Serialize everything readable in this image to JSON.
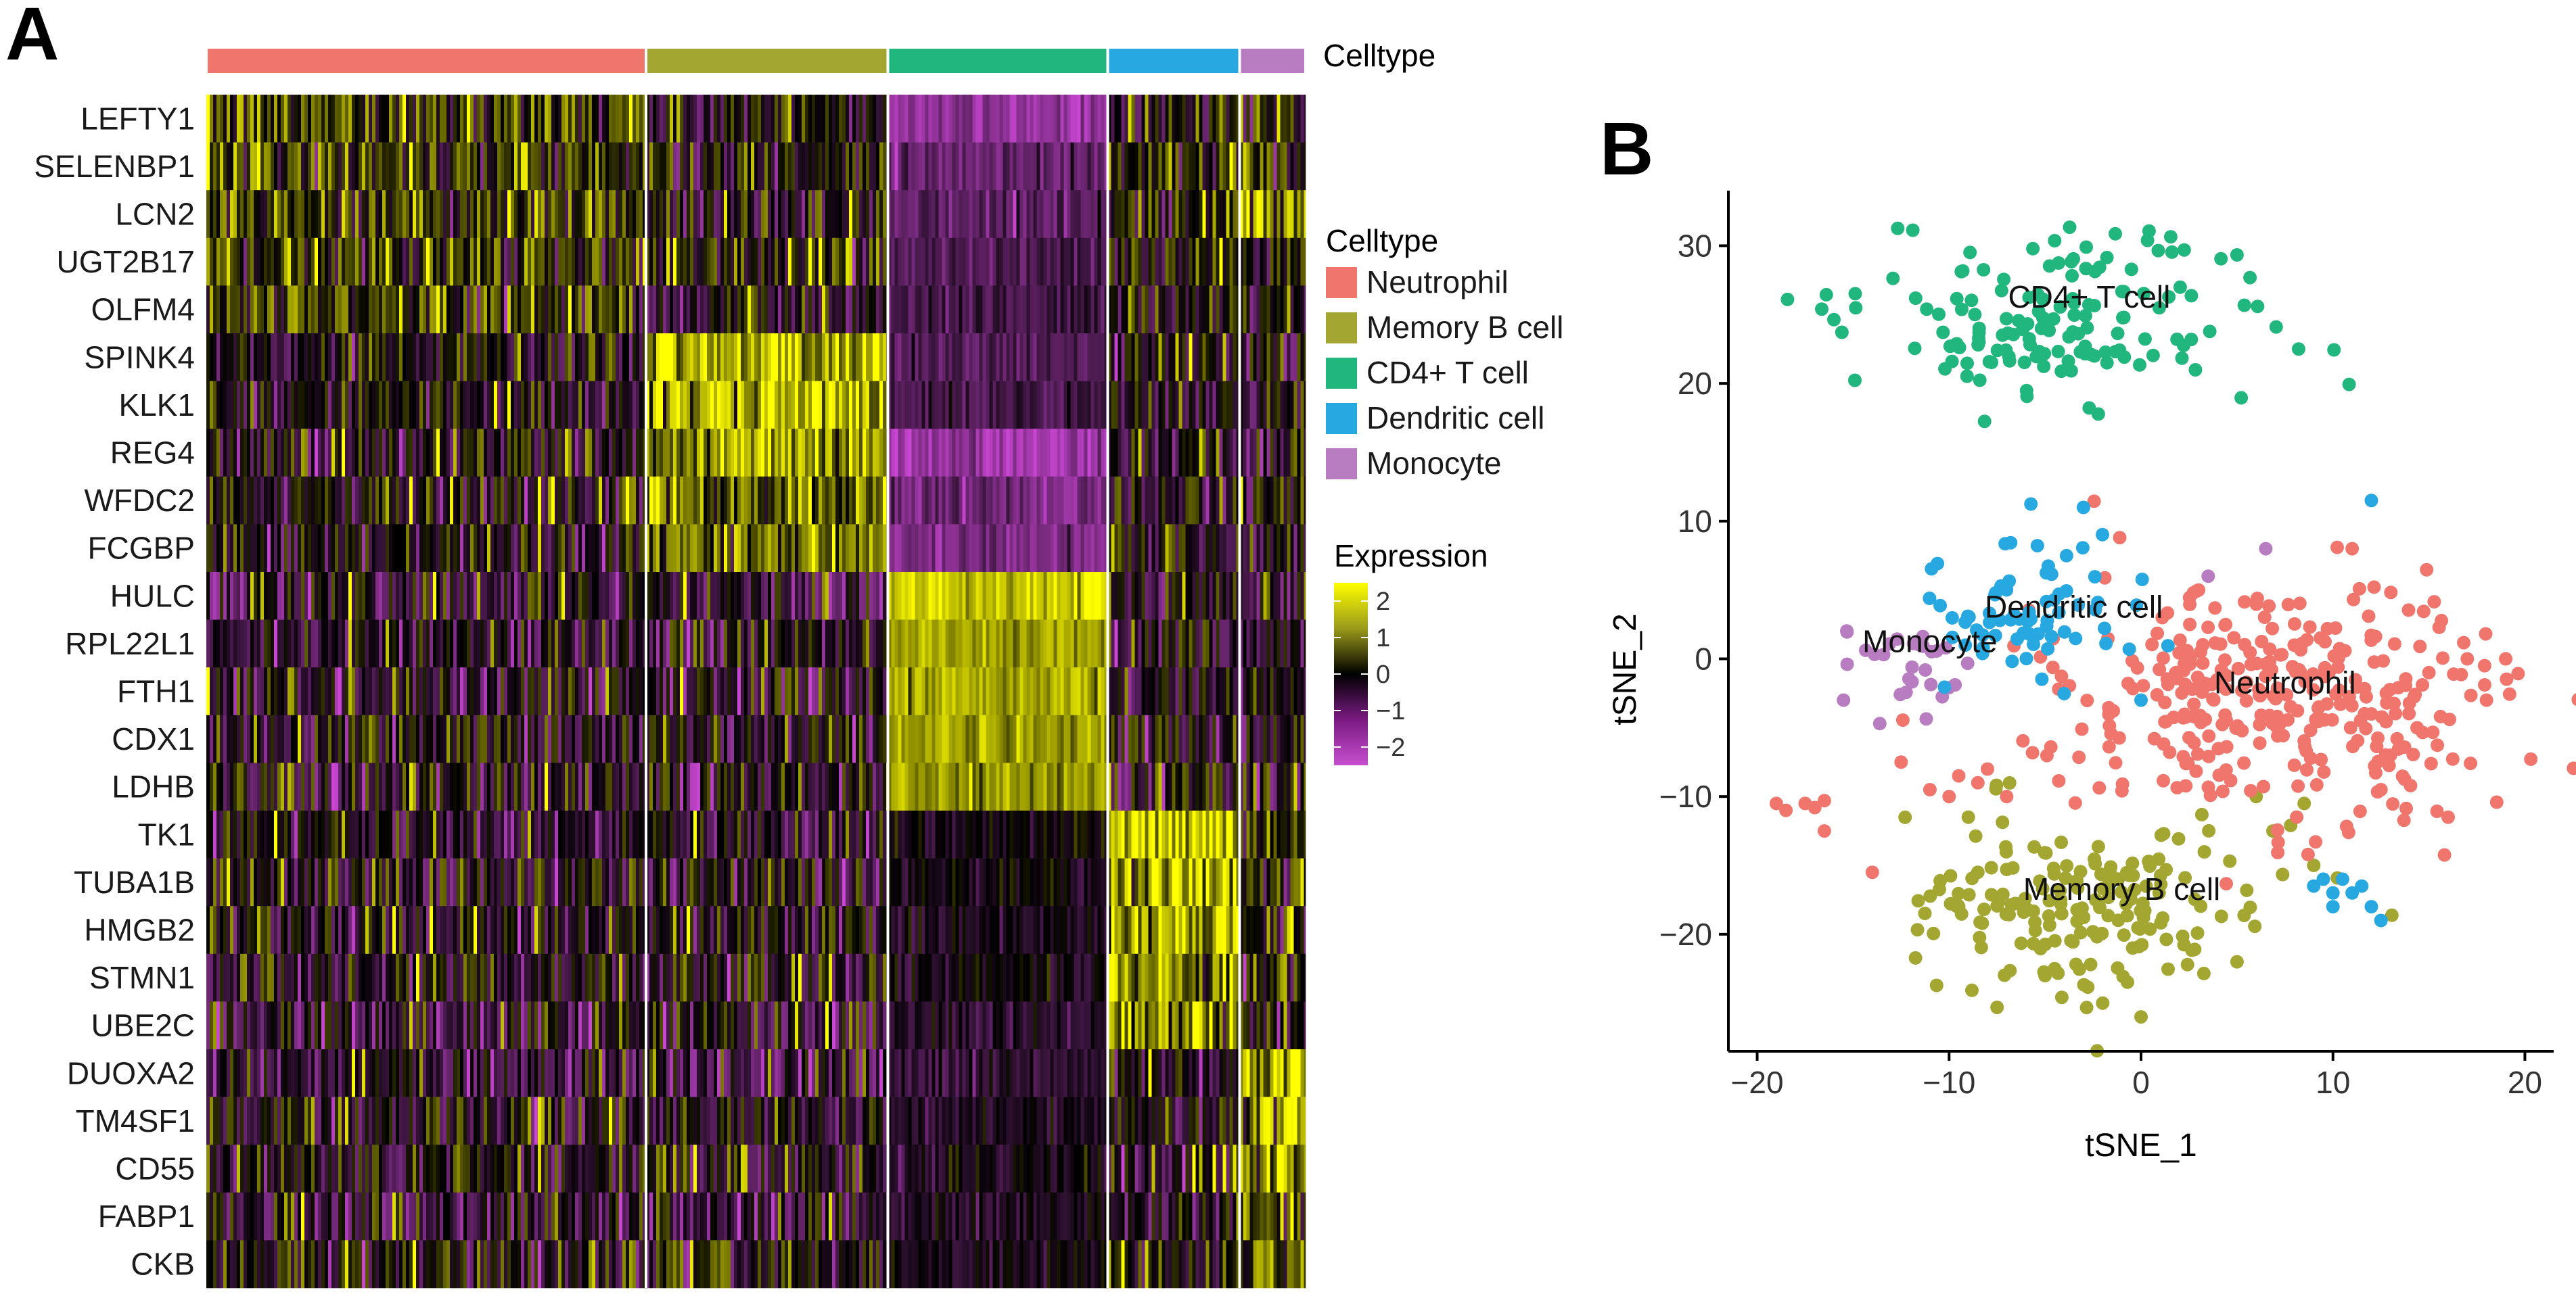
{
  "panels": {
    "a_label": "A",
    "b_label": "B"
  },
  "colors": {
    "Neutrophil": "#F0766D",
    "Memory B cell": "#A3A630",
    "CD4+ T cell": "#20B67D",
    "Dendritic cell": "#28A8E0",
    "Monocyte": "#B87CC1"
  },
  "chart_data": [
    {
      "type": "heatmap",
      "title": "",
      "annotation_label": "Celltype",
      "celltypes": [
        {
          "name": "Neutrophil",
          "fraction": 0.4
        },
        {
          "name": "Memory B cell",
          "fraction": 0.22
        },
        {
          "name": "CD4+ T cell",
          "fraction": 0.2
        },
        {
          "name": "Dendritic cell",
          "fraction": 0.12
        },
        {
          "name": "Monocyte",
          "fraction": 0.06
        }
      ],
      "genes": [
        "LEFTY1",
        "SELENBP1",
        "LCN2",
        "UGT2B17",
        "OLFM4",
        "SPINK4",
        "KLK1",
        "REG4",
        "WFDC2",
        "FCGBP",
        "HULC",
        "RPL22L1",
        "FTH1",
        "CDX1",
        "LDHB",
        "TK1",
        "TUBA1B",
        "HMGB2",
        "STMN1",
        "UBE2C",
        "DUOXA2",
        "TM4SF1",
        "CD55",
        "FABP1",
        "CKB"
      ],
      "mean_expression": [
        [
          0.6,
          -0.2,
          -1.8,
          0.0,
          0.2
        ],
        [
          0.5,
          -0.1,
          -1.2,
          0.2,
          0.0
        ],
        [
          0.5,
          -0.1,
          -1.1,
          0.0,
          1.0
        ],
        [
          0.5,
          0.0,
          -0.9,
          0.1,
          0.0
        ],
        [
          0.5,
          -0.3,
          -0.8,
          -0.1,
          0.0
        ],
        [
          -0.1,
          1.6,
          -1.0,
          -0.3,
          -0.2
        ],
        [
          -0.1,
          1.6,
          -0.9,
          -0.2,
          -0.2
        ],
        [
          -0.2,
          1.3,
          -2.0,
          -0.4,
          -0.2
        ],
        [
          -0.1,
          1.2,
          -1.4,
          -0.3,
          -0.1
        ],
        [
          -0.1,
          1.1,
          -1.6,
          -0.2,
          -0.2
        ],
        [
          -0.6,
          -0.6,
          2.0,
          -0.5,
          -0.5
        ],
        [
          -0.4,
          -0.4,
          1.6,
          -0.4,
          -0.3
        ],
        [
          -0.3,
          -0.3,
          1.6,
          -0.3,
          -0.2
        ],
        [
          -0.3,
          -0.3,
          1.5,
          -0.2,
          -0.2
        ],
        [
          -0.3,
          -0.3,
          1.5,
          -0.2,
          -0.2
        ],
        [
          -0.3,
          -0.4,
          -0.2,
          1.8,
          0.2
        ],
        [
          -0.2,
          -0.3,
          -0.2,
          1.6,
          0.2
        ],
        [
          -0.2,
          -0.3,
          -0.3,
          1.6,
          0.1
        ],
        [
          -0.2,
          -0.3,
          -0.2,
          1.5,
          0.1
        ],
        [
          -0.5,
          -0.5,
          -0.5,
          1.3,
          -0.3
        ],
        [
          -0.6,
          -0.6,
          -0.6,
          -0.4,
          1.8
        ],
        [
          -0.2,
          -0.3,
          -0.3,
          -0.2,
          1.6
        ],
        [
          -0.1,
          -0.2,
          -0.3,
          -0.1,
          1.3
        ],
        [
          -0.4,
          -0.4,
          -0.4,
          -0.3,
          0.8
        ],
        [
          -0.1,
          -0.2,
          -0.3,
          -0.1,
          0.8
        ]
      ],
      "legend": {
        "celltype_title": "Celltype",
        "expression_title": "Expression",
        "ticks": [
          2,
          1,
          0,
          -1,
          -2
        ],
        "tick_labels": [
          "2",
          "1",
          "0",
          "−1",
          "−2"
        ]
      }
    },
    {
      "type": "scatter",
      "title": "",
      "xlabel": "tSNE_1",
      "ylabel": "tSNE_2",
      "xlim": [
        -21.5,
        21.5
      ],
      "ylim": [
        -28.5,
        34
      ],
      "xticks": [
        -20,
        -10,
        0,
        10,
        20
      ],
      "yticks": [
        -20,
        -10,
        0,
        10,
        20,
        30
      ],
      "xtick_labels": [
        "−20",
        "−10",
        "0",
        "10",
        "20"
      ],
      "ytick_labels": [
        "−20",
        "−10",
        "0",
        "10",
        "20",
        "30"
      ],
      "series": [
        {
          "name": "CD4+ T cell",
          "label": "CD4+ T cell",
          "label_at": [
            -2.7,
            25.5
          ],
          "center": [
            -3.5,
            25
          ],
          "spread": [
            5.2,
            3.0
          ],
          "n": 150
        },
        {
          "name": "Dendritic cell",
          "label": "Dendritic cell",
          "label_at": [
            -3.5,
            3
          ],
          "center": [
            -5.5,
            3.5
          ],
          "spread": [
            3.0,
            3.0
          ],
          "n": 70
        },
        {
          "name": "Monocyte",
          "label": "Monocyte",
          "label_at": [
            -11,
            0.5
          ],
          "center": [
            -12.5,
            -0.5
          ],
          "spread": [
            1.6,
            1.8
          ],
          "n": 28
        },
        {
          "name": "Neutrophil",
          "label": "Neutrophil",
          "label_at": [
            7.5,
            -2.5
          ],
          "center": [
            7.5,
            -2.5
          ],
          "spread": [
            6.0,
            4.5
          ],
          "n": 330
        },
        {
          "name": "Memory B cell",
          "label": "Memory B cell",
          "label_at": [
            -1,
            -17.5
          ],
          "center": [
            -2.5,
            -18
          ],
          "spread": [
            4.5,
            3.2
          ],
          "n": 175
        }
      ],
      "extra_points": [
        {
          "name": "Neutrophil",
          "points": [
            [
              -19,
              -10.5
            ],
            [
              -18.5,
              -11
            ],
            [
              -17.5,
              -10.5
            ],
            [
              -17,
              -10.8
            ],
            [
              -16.5,
              -10.3
            ],
            [
              -16.5,
              -12.5
            ],
            [
              -14,
              -15.5
            ],
            [
              -11,
              -9.5
            ],
            [
              -10,
              -10
            ],
            [
              -9.5,
              -8.5
            ],
            [
              -8.5,
              -9
            ],
            [
              -8,
              -8
            ],
            [
              -7,
              -10
            ],
            [
              -12.5,
              -7.5
            ],
            [
              12.5,
              -9.5
            ],
            [
              16,
              -11.5
            ],
            [
              12,
              -4
            ],
            [
              15,
              -1
            ],
            [
              17,
              0
            ],
            [
              19,
              0
            ],
            [
              11,
              8
            ],
            [
              13,
              -7
            ],
            [
              18,
              -3
            ],
            [
              3,
              5
            ]
          ]
        },
        {
          "name": "Memory B cell",
          "points": [
            [
              -9.5,
              -18
            ],
            [
              -9,
              -11.5
            ],
            [
              -5,
              -23
            ],
            [
              -4.5,
              -22.5
            ],
            [
              -2,
              -25
            ],
            [
              0,
              -26
            ],
            [
              -8.5,
              -15.5
            ],
            [
              5,
              -22
            ],
            [
              8.5,
              -10.5
            ],
            [
              9,
              -15
            ],
            [
              6,
              -10
            ]
          ]
        },
        {
          "name": "Dendritic cell",
          "points": [
            [
              -3,
              11
            ],
            [
              12,
              11.5
            ],
            [
              9,
              -16.5
            ],
            [
              10,
              -17
            ],
            [
              10.5,
              -16
            ],
            [
              11,
              -17
            ],
            [
              11.5,
              -16.5
            ],
            [
              12,
              -18
            ],
            [
              12.5,
              -19
            ],
            [
              10,
              -18
            ],
            [
              9.5,
              -16
            ],
            [
              0,
              -3
            ]
          ]
        },
        {
          "name": "Monocyte",
          "points": [
            [
              6.5,
              8
            ],
            [
              3.5,
              6
            ],
            [
              -15.5,
              -3
            ]
          ]
        }
      ]
    }
  ]
}
